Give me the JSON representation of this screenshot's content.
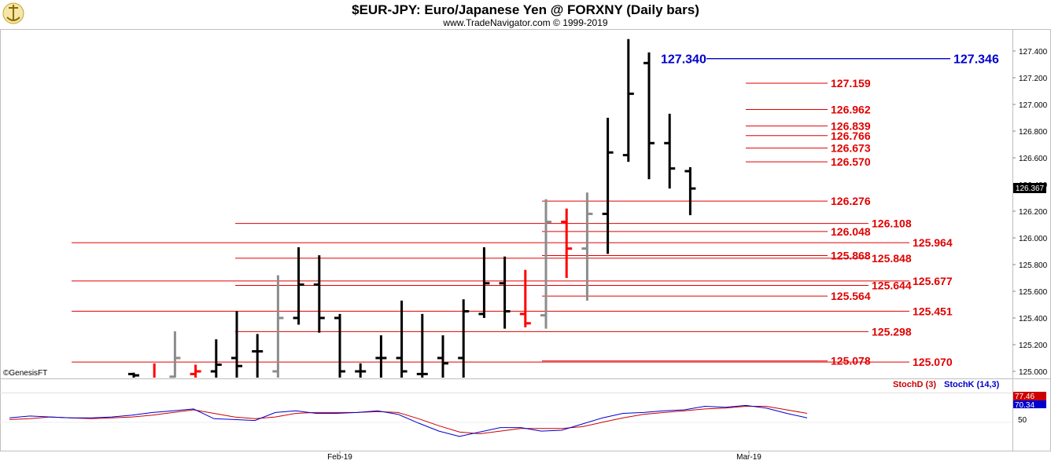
{
  "chart_data": {
    "type": "bar",
    "subtype": "ohlc",
    "title": "$EUR-JPY:  Euro/Japanese Yen @ FORXNY  (Daily bars)",
    "subtitle": "www.TradeNavigator.com © 1999-2019",
    "watermark": "©GenesisFT",
    "price_axis": {
      "range": [
        124.95,
        127.5
      ],
      "ticks": [
        "125.000",
        "125.200",
        "125.400",
        "125.600",
        "125.800",
        "126.000",
        "126.200",
        "126.400",
        "126.600",
        "126.800",
        "127.000",
        "127.200",
        "127.400"
      ],
      "last_price": "126.367"
    },
    "date_labels": [
      "Feb-19",
      "Mar-19"
    ],
    "bars": [
      {
        "o": 124.98,
        "h": 124.99,
        "l": 124.9,
        "c": 124.97,
        "color": "black"
      },
      {
        "o": 124.95,
        "h": 125.06,
        "l": 124.9,
        "c": 124.95,
        "color": "red"
      },
      {
        "o": 124.96,
        "h": 125.3,
        "l": 124.9,
        "c": 125.1,
        "color": "gray"
      },
      {
        "o": 124.98,
        "h": 125.05,
        "l": 124.9,
        "c": 125.0,
        "color": "red"
      },
      {
        "o": 125.0,
        "h": 125.24,
        "l": 124.9,
        "c": 125.05,
        "color": "black"
      },
      {
        "o": 125.1,
        "h": 125.45,
        "l": 124.9,
        "c": 125.04,
        "color": "black"
      },
      {
        "o": 125.15,
        "h": 125.28,
        "l": 124.9,
        "c": 125.15,
        "color": "black"
      },
      {
        "o": 125.0,
        "h": 125.72,
        "l": 124.9,
        "c": 125.4,
        "color": "gray"
      },
      {
        "o": 125.4,
        "h": 125.93,
        "l": 125.35,
        "c": 125.65,
        "color": "black"
      },
      {
        "o": 125.65,
        "h": 125.87,
        "l": 125.29,
        "c": 125.4,
        "color": "black"
      },
      {
        "o": 125.4,
        "h": 125.43,
        "l": 124.9,
        "c": 125.0,
        "color": "black"
      },
      {
        "o": 125.0,
        "h": 125.06,
        "l": 124.9,
        "c": 125.0,
        "color": "black"
      },
      {
        "o": 125.1,
        "h": 125.27,
        "l": 124.9,
        "c": 125.1,
        "color": "black"
      },
      {
        "o": 125.1,
        "h": 125.53,
        "l": 124.9,
        "c": 125.0,
        "color": "black"
      },
      {
        "o": 124.98,
        "h": 125.43,
        "l": 124.9,
        "c": 124.98,
        "color": "black"
      },
      {
        "o": 125.1,
        "h": 125.27,
        "l": 124.9,
        "c": 125.06,
        "color": "black"
      },
      {
        "o": 125.1,
        "h": 125.54,
        "l": 124.9,
        "c": 125.45,
        "color": "black"
      },
      {
        "o": 125.43,
        "h": 125.93,
        "l": 125.4,
        "c": 125.66,
        "color": "black"
      },
      {
        "o": 125.66,
        "h": 125.86,
        "l": 125.32,
        "c": 125.45,
        "color": "black"
      },
      {
        "o": 125.43,
        "h": 125.76,
        "l": 125.33,
        "c": 125.36,
        "color": "red"
      },
      {
        "o": 125.42,
        "h": 126.29,
        "l": 125.32,
        "c": 126.12,
        "color": "gray"
      },
      {
        "o": 126.12,
        "h": 126.22,
        "l": 125.7,
        "c": 125.92,
        "color": "red"
      },
      {
        "o": 125.92,
        "h": 126.34,
        "l": 125.53,
        "c": 126.18,
        "color": "gray"
      },
      {
        "o": 126.18,
        "h": 126.9,
        "l": 125.88,
        "c": 126.64,
        "color": "black"
      },
      {
        "o": 126.62,
        "h": 127.49,
        "l": 126.57,
        "c": 127.08,
        "color": "black"
      },
      {
        "o": 127.31,
        "h": 127.39,
        "l": 126.44,
        "c": 126.71,
        "color": "black"
      },
      {
        "o": 126.71,
        "h": 126.93,
        "l": 126.37,
        "c": 126.52,
        "color": "black"
      },
      {
        "o": 126.5,
        "h": 126.53,
        "l": 126.17,
        "c": 126.37,
        "color": "black"
      }
    ],
    "levels_blue": [
      {
        "label_left": "127.340",
        "label_right": "127.346",
        "value": 127.343
      }
    ],
    "levels_red": [
      {
        "label": "127.159",
        "value": 127.159,
        "start_bar": 24,
        "label_x": "right1"
      },
      {
        "label": "126.962",
        "value": 126.962,
        "start_bar": 24,
        "label_x": "right1"
      },
      {
        "label": "126.839",
        "value": 126.839,
        "start_bar": 24,
        "label_x": "right1"
      },
      {
        "label": "126.766",
        "value": 126.766,
        "start_bar": 24,
        "label_x": "right1"
      },
      {
        "label": "126.673",
        "value": 126.673,
        "start_bar": 24,
        "label_x": "right1"
      },
      {
        "label": "126.570",
        "value": 126.57,
        "start_bar": 24,
        "label_x": "right1"
      },
      {
        "label": "126.276",
        "value": 126.276,
        "start_bar": 16,
        "label_x": "right1"
      },
      {
        "label": "126.108",
        "value": 126.108,
        "start_bar": 2,
        "label_x": "right2"
      },
      {
        "label": "126.048",
        "value": 126.048,
        "start_bar": 16,
        "label_x": "right1"
      },
      {
        "label": "125.964",
        "value": 125.964,
        "start_bar": -1,
        "label_x": "right3"
      },
      {
        "label": "125.868",
        "value": 125.868,
        "start_bar": 16,
        "label_x": "right1"
      },
      {
        "label": "125.848",
        "value": 125.848,
        "start_bar": 2,
        "label_x": "right2"
      },
      {
        "label": "125.677",
        "value": 125.677,
        "start_bar": -1,
        "label_x": "right3"
      },
      {
        "label": "125.644",
        "value": 125.644,
        "start_bar": 2,
        "label_x": "right2"
      },
      {
        "label": "125.564",
        "value": 125.564,
        "start_bar": 16,
        "label_x": "right1"
      },
      {
        "label": "125.451",
        "value": 125.451,
        "start_bar": -1,
        "label_x": "right3"
      },
      {
        "label": "125.298",
        "value": 125.298,
        "start_bar": 2,
        "label_x": "right2"
      },
      {
        "label": "125.078",
        "value": 125.078,
        "start_bar": 16,
        "label_x": "right1"
      },
      {
        "label": "125.070",
        "value": 125.07,
        "start_bar": -1,
        "label_x": "right3"
      }
    ],
    "oscillator": {
      "legend": [
        {
          "name": "StochD (3)",
          "color": "#cc0000"
        },
        {
          "name": "StochK (14,3)",
          "color": "#0000cc"
        }
      ],
      "ticks": [
        "50"
      ],
      "range": [
        0,
        110
      ],
      "k_label": "70.34",
      "d_label": "77.46",
      "stochK": [
        60,
        64,
        62,
        60,
        60,
        62,
        66,
        72,
        76,
        80,
        58,
        56,
        54,
        72,
        76,
        70,
        70,
        72,
        76,
        68,
        48,
        30,
        18,
        28,
        38,
        38,
        30,
        32,
        46,
        60,
        70,
        72,
        76,
        78,
        86,
        84,
        88,
        82,
        70,
        60
      ],
      "stochD": [
        56,
        58,
        62,
        60,
        58,
        60,
        62,
        66,
        72,
        78,
        70,
        62,
        58,
        62,
        70,
        72,
        72,
        72,
        74,
        72,
        58,
        42,
        28,
        24,
        30,
        36,
        36,
        36,
        40,
        50,
        60,
        68,
        72,
        76,
        80,
        82,
        86,
        86,
        78,
        70
      ]
    }
  }
}
